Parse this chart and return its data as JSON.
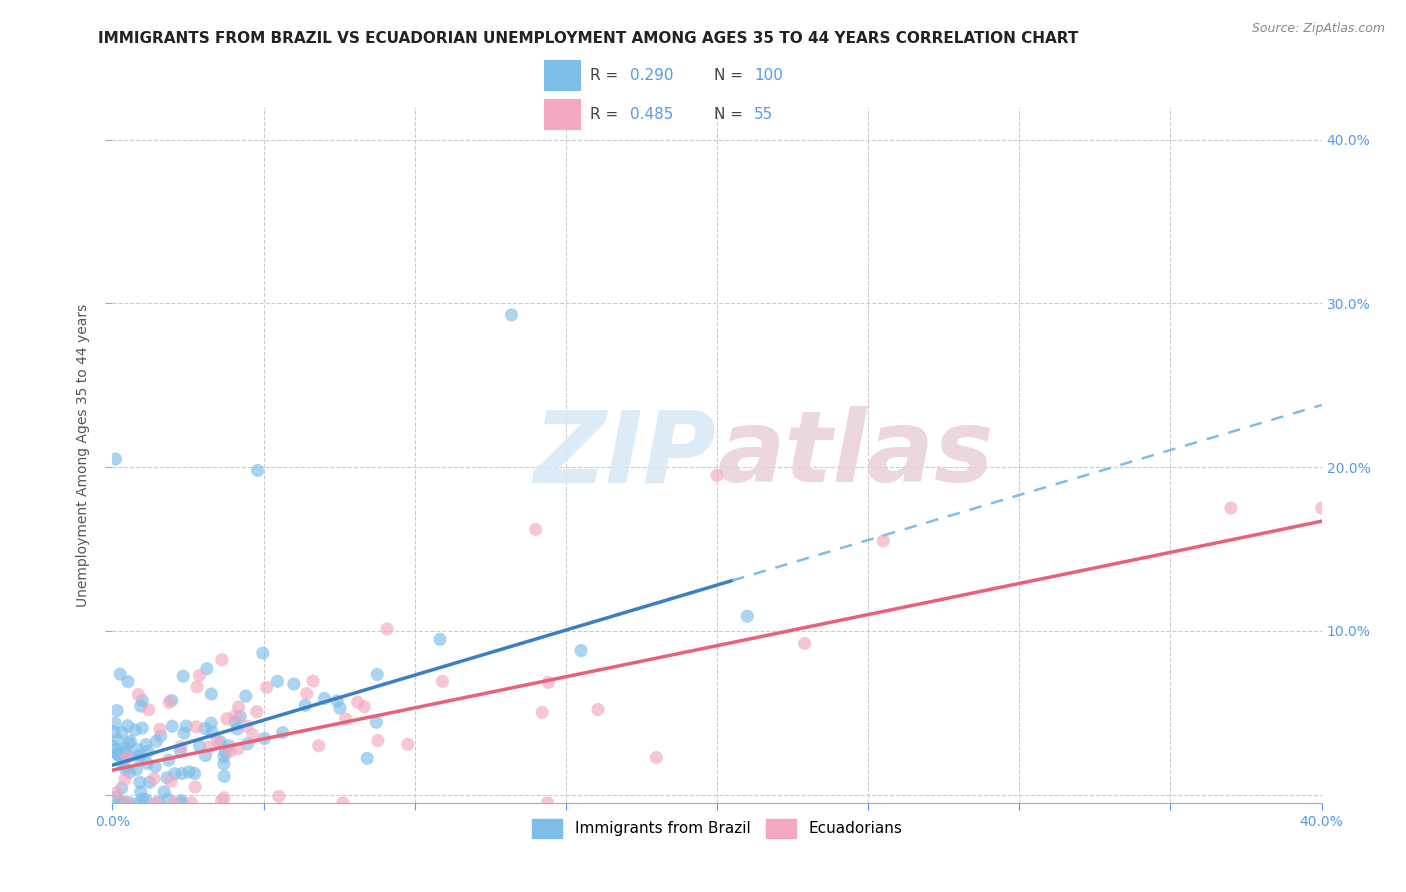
{
  "title": "IMMIGRANTS FROM BRAZIL VS ECUADORIAN UNEMPLOYMENT AMONG AGES 35 TO 44 YEARS CORRELATION CHART",
  "source": "Source: ZipAtlas.com",
  "ylabel": "Unemployment Among Ages 35 to 44 years",
  "xlim": [
    0.0,
    0.4
  ],
  "ylim": [
    -0.005,
    0.42
  ],
  "xticks": [
    0.0,
    0.05,
    0.1,
    0.15,
    0.2,
    0.25,
    0.3,
    0.35,
    0.4
  ],
  "yticks": [
    0.0,
    0.1,
    0.2,
    0.3,
    0.4
  ],
  "blue_color": "#7dbde8",
  "pink_color": "#f4a8bf",
  "blue_line_color": "#3a7fc1",
  "pink_line_color": "#e8607a",
  "blue_dash_color": "#7dbde8",
  "R_blue": 0.29,
  "N_blue": 100,
  "R_pink": 0.485,
  "N_pink": 55,
  "legend_label_blue": "Immigrants from Brazil",
  "legend_label_pink": "Ecuadorians",
  "watermark_ZIP": "ZIP",
  "watermark_atlas": "atlas",
  "title_fontsize": 11,
  "axis_label_fontsize": 10,
  "tick_fontsize": 10,
  "tick_color": "#5599ee",
  "blue_seed": 42,
  "pink_seed": 7,
  "blue_intercept": 0.018,
  "blue_slope": 0.55,
  "pink_intercept": 0.015,
  "pink_slope": 0.38
}
